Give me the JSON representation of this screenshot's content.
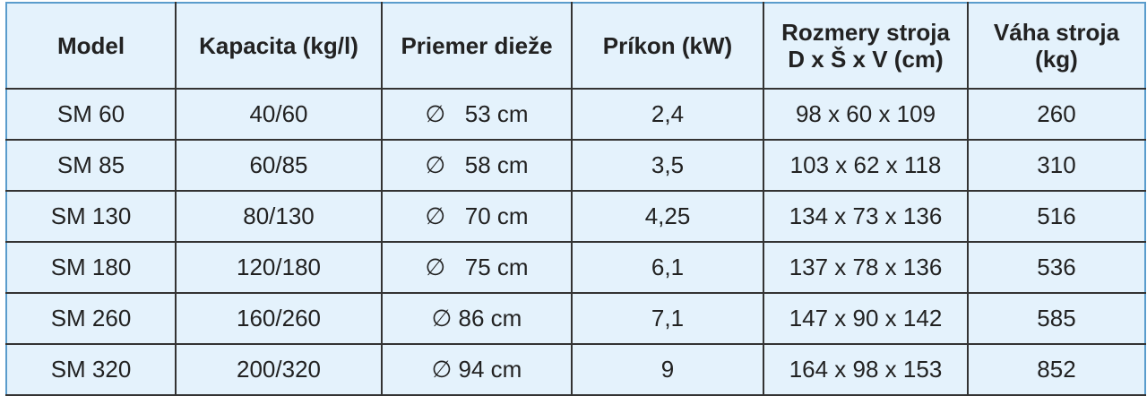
{
  "table": {
    "headers": [
      "Model",
      "Kapacita (kg/l)",
      "Priemer dieže",
      "Príkon (kW)",
      "Rozmery stroja\nD x Š x V (cm)",
      "Váha stroja\n(kg)"
    ],
    "rows": [
      [
        "SM 60",
        "40/60",
        "∅   53 cm",
        "2,4",
        "98 x 60 x 109",
        "260"
      ],
      [
        "SM 85",
        "60/85",
        "∅   58 cm",
        "3,5",
        "103 x 62 x 118",
        "310"
      ],
      [
        "SM 130",
        "80/130",
        "∅   70 cm",
        "4,25",
        "134 x 73 x 136",
        "516"
      ],
      [
        "SM 180",
        "120/180",
        "∅   75 cm",
        "6,1",
        "137 x 78 x 136",
        "536"
      ],
      [
        "SM 260",
        "160/260",
        "∅ 86 cm",
        "7,1",
        "147 x 90 x 142",
        "585"
      ],
      [
        "SM 320",
        "200/320",
        "∅ 94 cm",
        "9",
        "164 x 98 x 153",
        "852"
      ]
    ]
  },
  "colors": {
    "background": "#e4f2fc",
    "outer_border": "#5a9ccc",
    "grid": "#333333"
  }
}
